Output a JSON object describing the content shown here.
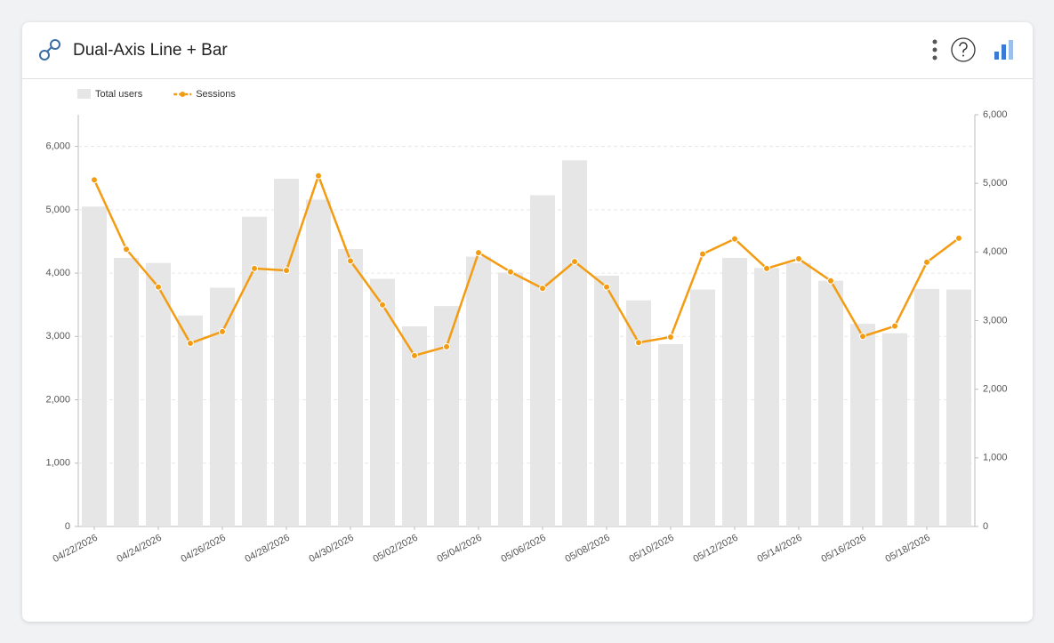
{
  "chart_data": {
    "type": "combo",
    "title": "Dual-Axis Line + Bar",
    "categories": [
      "04/22/2026",
      null,
      "04/24/2026",
      null,
      "04/26/2026",
      null,
      "04/28/2026",
      null,
      "04/30/2026",
      null,
      "05/02/2026",
      null,
      "05/04/2026",
      null,
      "05/06/2026",
      null,
      "05/08/2026",
      null,
      "05/10/2026",
      null,
      "05/12/2026",
      null,
      "05/14/2026",
      null,
      "05/16/2026",
      null,
      "05/18/2026",
      null
    ],
    "series": [
      {
        "name": "Total users",
        "type": "bar",
        "color": "#e6e6e6",
        "values": [
          5050,
          4240,
          4160,
          3330,
          3770,
          4890,
          5490,
          5160,
          4380,
          3910,
          3160,
          3480,
          4260,
          4010,
          5230,
          5780,
          3960,
          3570,
          2880,
          3740,
          4240,
          4080,
          4160,
          3880,
          3200,
          3050,
          3750,
          3740
        ]
      },
      {
        "name": "Sessions",
        "type": "line",
        "axis": "y2",
        "color": "#f39c12",
        "values": [
          5050,
          4040,
          3490,
          2670,
          2840,
          3760,
          3730,
          5110,
          3870,
          3230,
          2490,
          2620,
          3990,
          3710,
          3470,
          3860,
          3490,
          2680,
          2760,
          3970,
          4190,
          3760,
          3900,
          3580,
          2770,
          2920,
          3850,
          4200
        ]
      }
    ],
    "ylim": [
      0,
      6500
    ],
    "yticks": [
      0,
      {
        "value": 1000,
        "label": "1,000"
      },
      {
        "value": 2000,
        "label": "2,000"
      },
      {
        "value": 3000,
        "label": "3,000"
      },
      {
        "value": 4000,
        "label": "4,000"
      },
      {
        "value": 5000,
        "label": "5,000"
      },
      {
        "value": 6000,
        "label": "6,000"
      }
    ],
    "y2lim": [
      0,
      6000
    ],
    "y2ticks": [
      0,
      {
        "value": 1000,
        "label": "1,000"
      },
      {
        "value": 2000,
        "label": "2,000"
      },
      {
        "value": 3000,
        "label": "3,000"
      },
      {
        "value": 4000,
        "label": "4,000"
      },
      {
        "value": 5000,
        "label": "5,000"
      },
      {
        "value": 6000,
        "label": "6,000"
      }
    ],
    "grid": true,
    "legend": "top-left"
  }
}
